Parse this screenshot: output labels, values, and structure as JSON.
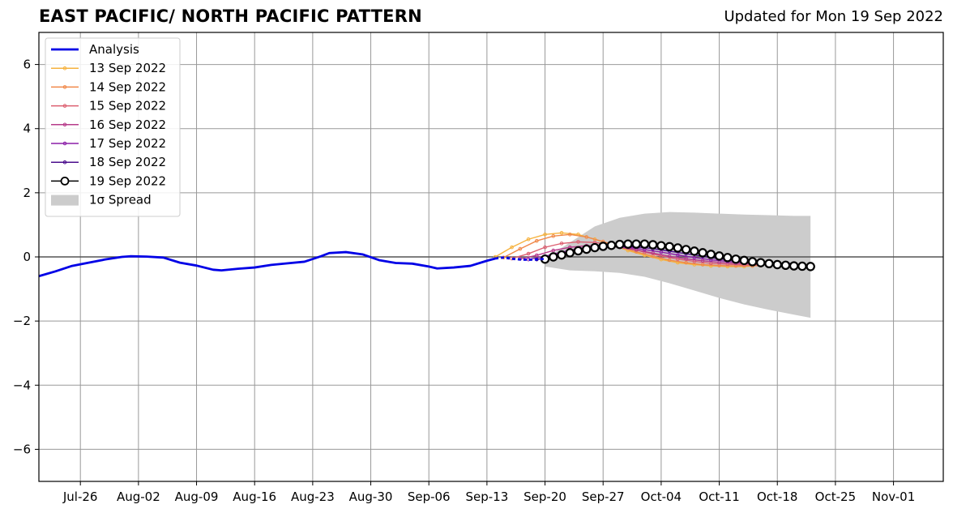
{
  "header": {
    "title": "EAST PACIFIC/ NORTH PACIFIC PATTERN",
    "updated": "Updated for Mon 19 Sep 2022"
  },
  "chart_data": {
    "type": "line",
    "title": "EAST PACIFIC/ NORTH PACIFIC PATTERN",
    "xlabel": "",
    "ylabel": "",
    "grid": true,
    "legend_position": "top-left",
    "xlim": [
      "2022-07-21",
      "2022-11-07"
    ],
    "ylim": [
      -7,
      7
    ],
    "x_ticks": [
      {
        "date": "2022-07-26",
        "label": "Jul-26"
      },
      {
        "date": "2022-08-02",
        "label": "Aug-02"
      },
      {
        "date": "2022-08-09",
        "label": "Aug-09"
      },
      {
        "date": "2022-08-16",
        "label": "Aug-16"
      },
      {
        "date": "2022-08-23",
        "label": "Aug-23"
      },
      {
        "date": "2022-08-30",
        "label": "Aug-30"
      },
      {
        "date": "2022-09-06",
        "label": "Sep-06"
      },
      {
        "date": "2022-09-13",
        "label": "Sep-13"
      },
      {
        "date": "2022-09-20",
        "label": "Sep-20"
      },
      {
        "date": "2022-09-27",
        "label": "Sep-27"
      },
      {
        "date": "2022-10-04",
        "label": "Oct-04"
      },
      {
        "date": "2022-10-11",
        "label": "Oct-11"
      },
      {
        "date": "2022-10-18",
        "label": "Oct-18"
      },
      {
        "date": "2022-10-25",
        "label": "Oct-25"
      },
      {
        "date": "2022-11-01",
        "label": "Nov-01"
      }
    ],
    "y_ticks": [
      {
        "value": 6,
        "label": "6"
      },
      {
        "value": 4,
        "label": "4"
      },
      {
        "value": 2,
        "label": "2"
      },
      {
        "value": 0,
        "label": "0"
      },
      {
        "value": -2,
        "label": "−2"
      },
      {
        "value": -4,
        "label": "−4"
      },
      {
        "value": -6,
        "label": "−6"
      }
    ],
    "colors": {
      "analysis": "#0000e6",
      "spread": "#cccccc",
      "grid": "#999999",
      "zero_line": "#555555"
    },
    "analysis": {
      "name": "Analysis",
      "points": [
        [
          "2022-07-21",
          -0.6
        ],
        [
          "2022-07-23",
          -0.45
        ],
        [
          "2022-07-25",
          -0.28
        ],
        [
          "2022-07-27",
          -0.18
        ],
        [
          "2022-07-29",
          -0.08
        ],
        [
          "2022-07-31",
          0.0
        ],
        [
          "2022-08-01",
          0.02
        ],
        [
          "2022-08-03",
          0.01
        ],
        [
          "2022-08-05",
          -0.02
        ],
        [
          "2022-08-07",
          -0.18
        ],
        [
          "2022-08-09",
          -0.27
        ],
        [
          "2022-08-11",
          -0.4
        ],
        [
          "2022-08-12",
          -0.42
        ],
        [
          "2022-08-14",
          -0.37
        ],
        [
          "2022-08-16",
          -0.33
        ],
        [
          "2022-08-18",
          -0.25
        ],
        [
          "2022-08-20",
          -0.2
        ],
        [
          "2022-08-22",
          -0.15
        ],
        [
          "2022-08-24",
          0.02
        ],
        [
          "2022-08-25",
          0.12
        ],
        [
          "2022-08-27",
          0.15
        ],
        [
          "2022-08-29",
          0.08
        ],
        [
          "2022-08-31",
          -0.1
        ],
        [
          "2022-09-02",
          -0.19
        ],
        [
          "2022-09-04",
          -0.21
        ],
        [
          "2022-09-06",
          -0.3
        ],
        [
          "2022-09-07",
          -0.36
        ],
        [
          "2022-09-09",
          -0.33
        ],
        [
          "2022-09-11",
          -0.28
        ],
        [
          "2022-09-13",
          -0.12
        ],
        [
          "2022-09-14",
          -0.05
        ],
        [
          "2022-09-15",
          -0.02
        ],
        [
          "2022-09-16",
          -0.06
        ],
        [
          "2022-09-17",
          -0.08
        ],
        [
          "2022-09-18",
          -0.09
        ],
        [
          "2022-09-19",
          -0.08
        ],
        [
          "2022-09-20",
          -0.06
        ]
      ]
    },
    "spread": {
      "name": "1σ Spread",
      "upper": [
        [
          "2022-09-20",
          -0.05
        ],
        [
          "2022-09-23",
          0.45
        ],
        [
          "2022-09-26",
          0.95
        ],
        [
          "2022-09-29",
          1.22
        ],
        [
          "2022-10-02",
          1.35
        ],
        [
          "2022-10-05",
          1.4
        ],
        [
          "2022-10-08",
          1.38
        ],
        [
          "2022-10-11",
          1.35
        ],
        [
          "2022-10-14",
          1.32
        ],
        [
          "2022-10-17",
          1.3
        ],
        [
          "2022-10-20",
          1.28
        ],
        [
          "2022-10-22",
          1.28
        ]
      ],
      "lower": [
        [
          "2022-09-20",
          -0.3
        ],
        [
          "2022-09-23",
          -0.42
        ],
        [
          "2022-09-26",
          -0.45
        ],
        [
          "2022-09-29",
          -0.5
        ],
        [
          "2022-10-02",
          -0.62
        ],
        [
          "2022-10-05",
          -0.82
        ],
        [
          "2022-10-08",
          -1.05
        ],
        [
          "2022-10-11",
          -1.28
        ],
        [
          "2022-10-14",
          -1.48
        ],
        [
          "2022-10-17",
          -1.65
        ],
        [
          "2022-10-20",
          -1.8
        ],
        [
          "2022-10-22",
          -1.9
        ]
      ]
    },
    "series": [
      {
        "name": "13 Sep 2022",
        "color": "#f6b23e",
        "marker": "small",
        "points": [
          [
            "2022-09-14",
            0.0
          ],
          [
            "2022-09-16",
            0.3
          ],
          [
            "2022-09-18",
            0.55
          ],
          [
            "2022-09-20",
            0.7
          ],
          [
            "2022-09-22",
            0.75
          ],
          [
            "2022-09-24",
            0.7
          ],
          [
            "2022-09-26",
            0.55
          ],
          [
            "2022-09-28",
            0.38
          ],
          [
            "2022-09-30",
            0.2
          ],
          [
            "2022-10-02",
            0.05
          ],
          [
            "2022-10-04",
            -0.08
          ],
          [
            "2022-10-06",
            -0.18
          ],
          [
            "2022-10-08",
            -0.24
          ],
          [
            "2022-10-10",
            -0.28
          ],
          [
            "2022-10-12",
            -0.3
          ],
          [
            "2022-10-14",
            -0.3
          ],
          [
            "2022-10-15",
            -0.28
          ]
        ]
      },
      {
        "name": "14 Sep 2022",
        "color": "#f0894a",
        "marker": "small",
        "points": [
          [
            "2022-09-15",
            -0.02
          ],
          [
            "2022-09-17",
            0.25
          ],
          [
            "2022-09-19",
            0.5
          ],
          [
            "2022-09-21",
            0.65
          ],
          [
            "2022-09-23",
            0.7
          ],
          [
            "2022-09-25",
            0.62
          ],
          [
            "2022-09-27",
            0.48
          ],
          [
            "2022-09-29",
            0.32
          ],
          [
            "2022-10-01",
            0.16
          ],
          [
            "2022-10-03",
            0.02
          ],
          [
            "2022-10-05",
            -0.1
          ],
          [
            "2022-10-07",
            -0.18
          ],
          [
            "2022-10-09",
            -0.24
          ],
          [
            "2022-10-11",
            -0.27
          ],
          [
            "2022-10-13",
            -0.28
          ],
          [
            "2022-10-15",
            -0.28
          ],
          [
            "2022-10-16",
            -0.27
          ]
        ]
      },
      {
        "name": "15 Sep 2022",
        "color": "#dc5f70",
        "marker": "small",
        "points": [
          [
            "2022-09-16",
            -0.05
          ],
          [
            "2022-09-18",
            0.1
          ],
          [
            "2022-09-20",
            0.3
          ],
          [
            "2022-09-22",
            0.42
          ],
          [
            "2022-09-24",
            0.47
          ],
          [
            "2022-09-26",
            0.45
          ],
          [
            "2022-09-28",
            0.38
          ],
          [
            "2022-09-30",
            0.28
          ],
          [
            "2022-10-02",
            0.15
          ],
          [
            "2022-10-04",
            0.03
          ],
          [
            "2022-10-06",
            -0.07
          ],
          [
            "2022-10-08",
            -0.14
          ],
          [
            "2022-10-10",
            -0.2
          ],
          [
            "2022-10-12",
            -0.23
          ],
          [
            "2022-10-14",
            -0.25
          ],
          [
            "2022-10-16",
            -0.25
          ],
          [
            "2022-10-17",
            -0.24
          ]
        ]
      },
      {
        "name": "16 Sep 2022",
        "color": "#b73b8a",
        "marker": "small",
        "points": [
          [
            "2022-09-17",
            -0.06
          ],
          [
            "2022-09-19",
            0.05
          ],
          [
            "2022-09-21",
            0.2
          ],
          [
            "2022-09-23",
            0.3
          ],
          [
            "2022-09-25",
            0.35
          ],
          [
            "2022-09-27",
            0.35
          ],
          [
            "2022-09-29",
            0.3
          ],
          [
            "2022-10-01",
            0.22
          ],
          [
            "2022-10-03",
            0.12
          ],
          [
            "2022-10-05",
            0.02
          ],
          [
            "2022-10-07",
            -0.06
          ],
          [
            "2022-10-09",
            -0.12
          ],
          [
            "2022-10-11",
            -0.17
          ],
          [
            "2022-10-13",
            -0.2
          ],
          [
            "2022-10-15",
            -0.22
          ],
          [
            "2022-10-17",
            -0.22
          ],
          [
            "2022-10-18",
            -0.21
          ]
        ]
      },
      {
        "name": "17 Sep 2022",
        "color": "#8b1fa8",
        "marker": "small",
        "points": [
          [
            "2022-09-18",
            -0.08
          ],
          [
            "2022-09-20",
            0.02
          ],
          [
            "2022-09-22",
            0.15
          ],
          [
            "2022-09-24",
            0.26
          ],
          [
            "2022-09-26",
            0.32
          ],
          [
            "2022-09-28",
            0.34
          ],
          [
            "2022-09-30",
            0.3
          ],
          [
            "2022-10-02",
            0.23
          ],
          [
            "2022-10-04",
            0.15
          ],
          [
            "2022-10-06",
            0.06
          ],
          [
            "2022-10-08",
            -0.02
          ],
          [
            "2022-10-10",
            -0.09
          ],
          [
            "2022-10-12",
            -0.14
          ],
          [
            "2022-10-14",
            -0.18
          ],
          [
            "2022-10-16",
            -0.2
          ],
          [
            "2022-10-18",
            -0.21
          ],
          [
            "2022-10-19",
            -0.21
          ]
        ]
      },
      {
        "name": "18 Sep 2022",
        "color": "#4b0d8c",
        "marker": "small",
        "points": [
          [
            "2022-09-19",
            -0.08
          ],
          [
            "2022-09-21",
            0.0
          ],
          [
            "2022-09-23",
            0.12
          ],
          [
            "2022-09-25",
            0.22
          ],
          [
            "2022-09-27",
            0.3
          ],
          [
            "2022-09-29",
            0.33
          ],
          [
            "2022-10-01",
            0.31
          ],
          [
            "2022-10-03",
            0.26
          ],
          [
            "2022-10-05",
            0.18
          ],
          [
            "2022-10-07",
            0.1
          ],
          [
            "2022-10-09",
            0.02
          ],
          [
            "2022-10-11",
            -0.06
          ],
          [
            "2022-10-13",
            -0.12
          ],
          [
            "2022-10-15",
            -0.16
          ],
          [
            "2022-10-17",
            -0.19
          ],
          [
            "2022-10-19",
            -0.2
          ],
          [
            "2022-10-20",
            -0.21
          ]
        ]
      },
      {
        "name": "19 Sep 2022",
        "color": "#000000",
        "marker": "circle",
        "points": [
          [
            "2022-09-20",
            -0.07
          ],
          [
            "2022-09-21",
            0.0
          ],
          [
            "2022-09-22",
            0.06
          ],
          [
            "2022-09-23",
            0.13
          ],
          [
            "2022-09-24",
            0.19
          ],
          [
            "2022-09-25",
            0.24
          ],
          [
            "2022-09-26",
            0.29
          ],
          [
            "2022-09-27",
            0.33
          ],
          [
            "2022-09-28",
            0.36
          ],
          [
            "2022-09-29",
            0.39
          ],
          [
            "2022-09-30",
            0.4
          ],
          [
            "2022-10-01",
            0.4
          ],
          [
            "2022-10-02",
            0.4
          ],
          [
            "2022-10-03",
            0.38
          ],
          [
            "2022-10-04",
            0.35
          ],
          [
            "2022-10-05",
            0.32
          ],
          [
            "2022-10-06",
            0.28
          ],
          [
            "2022-10-07",
            0.23
          ],
          [
            "2022-10-08",
            0.18
          ],
          [
            "2022-10-09",
            0.13
          ],
          [
            "2022-10-10",
            0.08
          ],
          [
            "2022-10-11",
            0.03
          ],
          [
            "2022-10-12",
            -0.02
          ],
          [
            "2022-10-13",
            -0.07
          ],
          [
            "2022-10-14",
            -0.11
          ],
          [
            "2022-10-15",
            -0.15
          ],
          [
            "2022-10-16",
            -0.18
          ],
          [
            "2022-10-17",
            -0.21
          ],
          [
            "2022-10-18",
            -0.24
          ],
          [
            "2022-10-19",
            -0.26
          ],
          [
            "2022-10-20",
            -0.28
          ],
          [
            "2022-10-21",
            -0.29
          ],
          [
            "2022-10-22",
            -0.3
          ]
        ]
      }
    ]
  }
}
